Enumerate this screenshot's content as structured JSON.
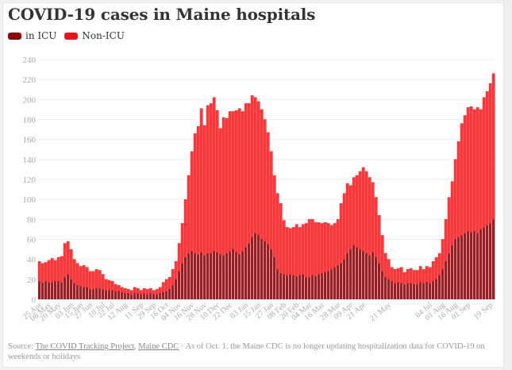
{
  "title": "COVID-19 cases in Maine hospitals",
  "legend": [
    {
      "label": "in ICU",
      "color": "#8a0a0a"
    },
    {
      "label": "Non-ICU",
      "color": "#e8141a"
    }
  ],
  "footer": {
    "source_prefix": "Source: ",
    "link1": "The COVID Tracking Project",
    "separator": ", ",
    "link2": "Maine CDC",
    "note": " · As of Oct. 1, the Maine CDC is no longer updating hospitalization data for COVID-19 on weekends or holidays"
  },
  "colors": {
    "icu": "#8f2323",
    "non_icu": "#f33d3d",
    "non_icu_edge": "#e01f1f",
    "grid": "#ececec"
  },
  "chart_data": {
    "type": "bar",
    "stacked": true,
    "title": "COVID-19 cases in Maine hospitals",
    "xlabel": "",
    "ylabel": "",
    "ylim": [
      0,
      240
    ],
    "yticks": [
      0,
      20,
      40,
      60,
      80,
      100,
      120,
      140,
      160,
      180,
      200,
      220,
      240
    ],
    "grid": true,
    "legend_position": "top-left",
    "x_tick_labels": [
      {
        "index": 0,
        "label": "25 Apr"
      },
      {
        "index": 3,
        "label": "08 May"
      },
      {
        "index": 6,
        "label": "20 May"
      },
      {
        "index": 10,
        "label": "03 Jun"
      },
      {
        "index": 13,
        "label": "15 Jun"
      },
      {
        "index": 16,
        "label": "27 Jun"
      },
      {
        "index": 20,
        "label": "10 Jul"
      },
      {
        "index": 23,
        "label": "22 Jul"
      },
      {
        "index": 27,
        "label": "12 Aug"
      },
      {
        "index": 32,
        "label": "11 Sep"
      },
      {
        "index": 36,
        "label": "29 Sep"
      },
      {
        "index": 40,
        "label": "16 Oct"
      },
      {
        "index": 44,
        "label": "04 Nov"
      },
      {
        "index": 48,
        "label": "16 Nov"
      },
      {
        "index": 52,
        "label": "28 Nov"
      },
      {
        "index": 56,
        "label": "10 Dec"
      },
      {
        "index": 60,
        "label": "22 Dec"
      },
      {
        "index": 65,
        "label": "03 Jan"
      },
      {
        "index": 69,
        "label": "15 Jan"
      },
      {
        "index": 73,
        "label": "27 Jan"
      },
      {
        "index": 77,
        "label": "08 Feb"
      },
      {
        "index": 81,
        "label": "20 Feb"
      },
      {
        "index": 85,
        "label": "04 Mar"
      },
      {
        "index": 89,
        "label": "16 Mar"
      },
      {
        "index": 94,
        "label": "28 Mar"
      },
      {
        "index": 98,
        "label": "09 Apr"
      },
      {
        "index": 102,
        "label": "21 Apr"
      },
      {
        "index": 110,
        "label": "21 May"
      },
      {
        "index": 123,
        "label": "04 Jul"
      },
      {
        "index": 127,
        "label": "01 Aug"
      },
      {
        "index": 131,
        "label": "16 Aug"
      },
      {
        "index": 135,
        "label": "01 Sep"
      },
      {
        "index": 142,
        "label": "19 Sep"
      }
    ],
    "series": [
      {
        "name": "in ICU",
        "values": [
          18,
          17,
          18,
          17,
          17,
          18,
          18,
          17,
          22,
          25,
          20,
          16,
          14,
          13,
          12,
          12,
          10,
          10,
          11,
          11,
          10,
          9,
          9,
          9,
          8,
          8,
          7,
          6,
          6,
          5,
          6,
          6,
          5,
          6,
          5,
          6,
          5,
          5,
          6,
          7,
          8,
          10,
          14,
          20,
          28,
          36,
          42,
          46,
          48,
          46,
          45,
          47,
          44,
          46,
          46,
          48,
          47,
          45,
          44,
          46,
          48,
          50,
          47,
          45,
          48,
          52,
          56,
          62,
          66,
          64,
          60,
          58,
          55,
          50,
          42,
          30,
          26,
          25,
          24,
          25,
          24,
          23,
          24,
          25,
          22,
          22,
          24,
          23,
          25,
          26,
          27,
          28,
          30,
          32,
          34,
          36,
          40,
          46,
          50,
          54,
          52,
          50,
          48,
          46,
          44,
          47,
          42,
          36,
          28,
          22,
          20,
          18,
          16,
          17,
          16,
          15,
          16,
          16,
          15,
          15,
          17,
          16,
          17,
          16,
          18,
          20,
          24,
          30,
          38,
          46,
          54,
          60,
          62,
          64,
          66,
          68,
          67,
          68,
          66,
          70,
          72,
          74,
          76,
          80
        ]
      },
      {
        "name": "Non-ICU",
        "values": [
          20,
          19,
          19,
          22,
          24,
          21,
          24,
          26,
          34,
          33,
          30,
          24,
          22,
          20,
          22,
          20,
          18,
          18,
          19,
          18,
          15,
          11,
          10,
          9,
          7,
          6,
          5,
          5,
          4,
          4,
          6,
          5,
          4,
          5,
          5,
          5,
          4,
          5,
          6,
          10,
          12,
          12,
          16,
          18,
          28,
          40,
          58,
          78,
          100,
          120,
          128,
          144,
          130,
          148,
          150,
          154,
          142,
          126,
          138,
          135,
          140,
          138,
          142,
          146,
          140,
          144,
          140,
          142,
          136,
          134,
          130,
          122,
          112,
          98,
          82,
          76,
          70,
          54,
          48,
          46,
          48,
          52,
          48,
          50,
          54,
          58,
          56,
          54,
          52,
          50,
          50,
          48,
          44,
          44,
          46,
          60,
          66,
          70,
          64,
          68,
          72,
          78,
          84,
          82,
          78,
          70,
          60,
          48,
          36,
          24,
          20,
          14,
          14,
          14,
          16,
          12,
          14,
          15,
          14,
          14,
          16,
          14,
          16,
          16,
          20,
          22,
          22,
          30,
          42,
          56,
          64,
          80,
          96,
          112,
          118,
          124,
          126,
          122,
          126,
          120,
          130,
          134,
          140,
          146
        ]
      }
    ]
  }
}
